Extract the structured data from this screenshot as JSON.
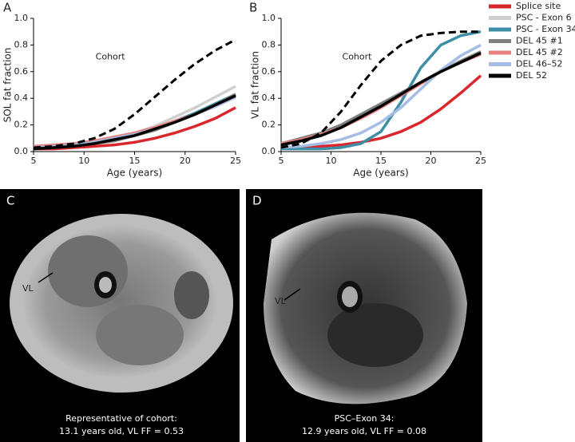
{
  "chart_data": [
    {
      "type": "line",
      "panel": "A",
      "ylabel": "SOL fat fraction",
      "xlabel": "Age (years)",
      "x": [
        5,
        7,
        9,
        11,
        13,
        15,
        17,
        19,
        21,
        23,
        25
      ],
      "xlim": [
        5,
        25
      ],
      "xticks": [
        5,
        10,
        15,
        20,
        25
      ],
      "ylim": [
        0,
        1
      ],
      "yticks": [
        {
          "value": 0,
          "label": "0.0"
        },
        0.2,
        0.4,
        0.6,
        0.8,
        {
          "value": 1,
          "label": "1.0"
        }
      ],
      "cohort": {
        "label": "Cohort",
        "color": "#000000",
        "values": [
          0.03,
          0.04,
          0.06,
          0.1,
          0.17,
          0.28,
          0.41,
          0.54,
          0.66,
          0.76,
          0.84
        ]
      },
      "series": [
        {
          "color": "#d9272e",
          "values": [
            0.02,
            0.02,
            0.03,
            0.04,
            0.05,
            0.07,
            0.1,
            0.14,
            0.19,
            0.25,
            0.33
          ]
        },
        {
          "color": "#cfcfcf",
          "values": [
            0.03,
            0.04,
            0.05,
            0.07,
            0.1,
            0.14,
            0.19,
            0.26,
            0.33,
            0.41,
            0.49
          ]
        },
        {
          "color": "#3e8fa6",
          "values": [
            0.03,
            0.03,
            0.04,
            0.06,
            0.09,
            0.13,
            0.17,
            0.23,
            0.29,
            0.36,
            0.43
          ]
        },
        {
          "color": "#7f7f7f",
          "values": [
            0.02,
            0.03,
            0.04,
            0.06,
            0.08,
            0.12,
            0.16,
            0.22,
            0.28,
            0.35,
            0.43
          ]
        },
        {
          "color": "#e8807f",
          "values": [
            0.04,
            0.05,
            0.06,
            0.08,
            0.11,
            0.14,
            0.18,
            0.23,
            0.28,
            0.34,
            0.41
          ]
        },
        {
          "color": "#a6bde3",
          "values": [
            0.03,
            0.04,
            0.05,
            0.07,
            0.1,
            0.13,
            0.17,
            0.22,
            0.28,
            0.34,
            0.41
          ]
        },
        {
          "color": "#000000",
          "values": [
            0.02,
            0.03,
            0.04,
            0.06,
            0.09,
            0.12,
            0.17,
            0.22,
            0.28,
            0.35,
            0.42
          ]
        }
      ]
    },
    {
      "type": "line",
      "panel": "B",
      "ylabel": "VL fat fraction",
      "xlabel": "Age (years)",
      "x": [
        5,
        7,
        9,
        11,
        13,
        15,
        17,
        19,
        21,
        23,
        25
      ],
      "xlim": [
        5,
        25
      ],
      "xticks": [
        5,
        10,
        15,
        20,
        25
      ],
      "ylim": [
        0,
        1
      ],
      "yticks": [
        {
          "value": 0,
          "label": "0.0"
        },
        0.2,
        0.4,
        0.6,
        0.8,
        {
          "value": 1,
          "label": "1.0"
        }
      ],
      "cohort": {
        "label": "Cohort",
        "color": "#000000",
        "values": [
          0.03,
          0.06,
          0.14,
          0.3,
          0.5,
          0.68,
          0.8,
          0.87,
          0.89,
          0.9,
          0.9
        ]
      },
      "series": [
        {
          "name": "Splice site",
          "color": "#d9272e",
          "values": [
            0.03,
            0.03,
            0.04,
            0.05,
            0.07,
            0.1,
            0.15,
            0.22,
            0.32,
            0.44,
            0.57
          ]
        },
        {
          "name": "PSC - Exon 6",
          "color": "#cfcfcf",
          "values": [
            0.06,
            0.09,
            0.13,
            0.19,
            0.26,
            0.34,
            0.43,
            0.52,
            0.61,
            0.68,
            0.74
          ]
        },
        {
          "name": "PSC - Exon 34",
          "color": "#3e8fa6",
          "values": [
            0.02,
            0.02,
            0.02,
            0.03,
            0.06,
            0.15,
            0.37,
            0.63,
            0.8,
            0.87,
            0.9
          ]
        },
        {
          "name": "DEL 45 #1",
          "color": "#7f7f7f",
          "values": [
            0.06,
            0.1,
            0.14,
            0.2,
            0.28,
            0.36,
            0.44,
            0.52,
            0.6,
            0.68,
            0.75
          ]
        },
        {
          "name": "DEL 45 #2",
          "color": "#e8807f",
          "values": [
            0.06,
            0.09,
            0.13,
            0.18,
            0.25,
            0.33,
            0.42,
            0.51,
            0.6,
            0.67,
            0.73
          ]
        },
        {
          "name": "DEL 46–52",
          "color": "#a6bde3",
          "values": [
            0.03,
            0.04,
            0.06,
            0.09,
            0.14,
            0.22,
            0.33,
            0.47,
            0.61,
            0.72,
            0.8
          ]
        },
        {
          "name": "DEL 52",
          "color": "#000000",
          "values": [
            0.05,
            0.08,
            0.12,
            0.18,
            0.26,
            0.34,
            0.43,
            0.52,
            0.6,
            0.67,
            0.74
          ]
        }
      ]
    }
  ],
  "images": [
    {
      "panel": "C",
      "muscle_label": "VL",
      "caption": [
        "Representative of cohort:",
        "13.1 years old, VL FF = 0.53"
      ]
    },
    {
      "panel": "D",
      "muscle_label": "VL",
      "caption": [
        "PSC–Exon 34:",
        "12.9 years old, VL FF = 0.08"
      ]
    }
  ]
}
